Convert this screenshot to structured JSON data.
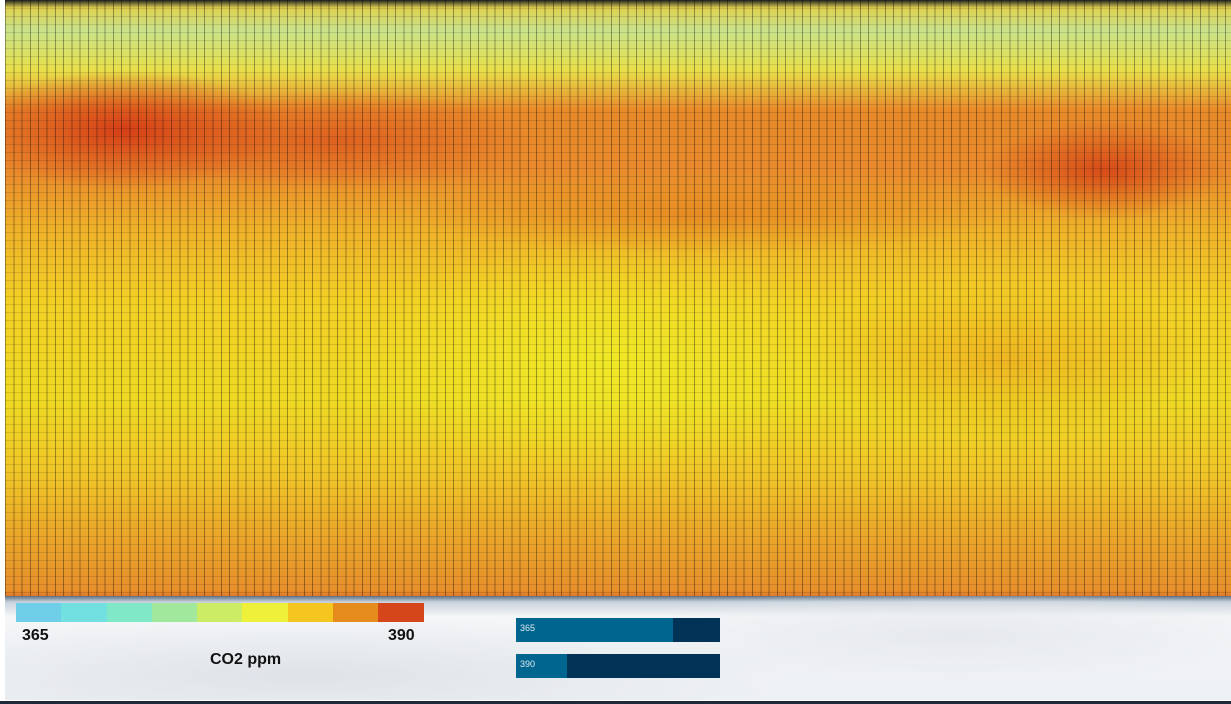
{
  "legend": {
    "colors": [
      "#6fcfe8",
      "#72dfe0",
      "#80e8c6",
      "#a2e89c",
      "#cdec66",
      "#eef03a",
      "#f5c61f",
      "#e68c1e",
      "#d6461b"
    ],
    "min_label": "365",
    "max_label": "390",
    "title": "CO2 ppm"
  },
  "sliders": [
    {
      "label": "365"
    },
    {
      "label": "390"
    }
  ]
}
